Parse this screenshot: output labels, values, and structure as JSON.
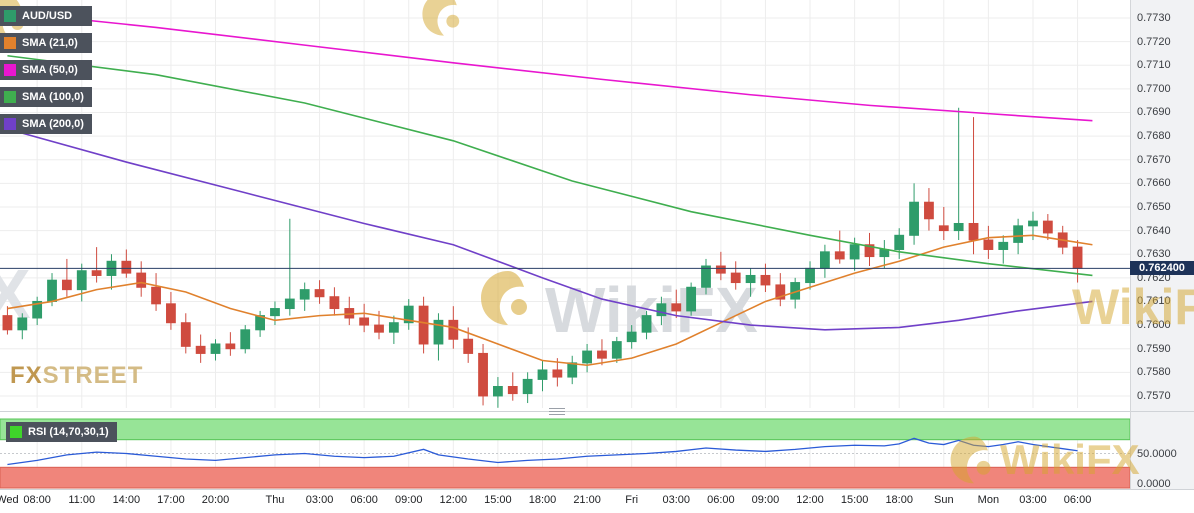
{
  "legend": {
    "symbol": {
      "label": "AUD/USD",
      "color": "#2f9c6a"
    },
    "items": [
      {
        "label": "SMA (21,0)",
        "color": "#e0812d"
      },
      {
        "label": "SMA (50,0)",
        "color": "#e816cf"
      },
      {
        "label": "SMA (100,0)",
        "color": "#3fae4f"
      },
      {
        "label": "SMA (200,0)",
        "color": "#7040c8"
      }
    ]
  },
  "price_axis": {
    "ticks": [
      "0.7730",
      "0.7720",
      "0.7710",
      "0.7700",
      "0.7690",
      "0.7680",
      "0.7670",
      "0.7660",
      "0.7650",
      "0.7640",
      "0.7630",
      "0.7620",
      "0.7610",
      "0.7600",
      "0.7590",
      "0.7580",
      "0.7570"
    ],
    "current_label": "0.762400",
    "current_bg": "#1d3258"
  },
  "rsi_panel": {
    "label": "RSI (14,70,30,1)",
    "square_color": "#3fd42a",
    "axis_ticks": [
      [
        50,
        "50.0000"
      ],
      [
        0,
        "0.0000"
      ]
    ]
  },
  "watermarks": {
    "center_text": "WikiFX",
    "left_text": "X",
    "right_text": "WikiFX",
    "bottom_right_text": "WikiFX",
    "fxstreet_fx": "FX",
    "fxstreet_street": "STREET"
  },
  "chart_data": {
    "type": "candlestick",
    "symbol": "AUD/USD",
    "current_price": 0.7624,
    "y_axis": {
      "min": 0.75649,
      "max": 0.77376,
      "ticks": [
        0.773,
        0.772,
        0.771,
        0.77,
        0.769,
        0.768,
        0.767,
        0.766,
        0.765,
        0.764,
        0.763,
        0.762,
        0.761,
        0.76,
        0.759,
        0.758,
        0.757
      ]
    },
    "x_labels": [
      [
        0,
        "Wed"
      ],
      [
        2,
        "08:00"
      ],
      [
        5,
        "11:00"
      ],
      [
        8,
        "14:00"
      ],
      [
        11,
        "17:00"
      ],
      [
        14,
        "20:00"
      ],
      [
        18,
        "Thu"
      ],
      [
        21,
        "03:00"
      ],
      [
        24,
        "06:00"
      ],
      [
        27,
        "09:00"
      ],
      [
        30,
        "12:00"
      ],
      [
        33,
        "15:00"
      ],
      [
        36,
        "18:00"
      ],
      [
        39,
        "21:00"
      ],
      [
        42,
        "Fri"
      ],
      [
        45,
        "03:00"
      ],
      [
        48,
        "06:00"
      ],
      [
        51,
        "09:00"
      ],
      [
        54,
        "12:00"
      ],
      [
        57,
        "15:00"
      ],
      [
        60,
        "18:00"
      ],
      [
        63,
        "Sun"
      ],
      [
        66,
        "Mon"
      ],
      [
        69,
        "03:00"
      ],
      [
        72,
        "06:00"
      ]
    ],
    "candles": [
      [
        0.7604,
        0.7608,
        0.7596,
        0.7598
      ],
      [
        0.7598,
        0.7605,
        0.7594,
        0.7603
      ],
      [
        0.7603,
        0.7612,
        0.76,
        0.761
      ],
      [
        0.761,
        0.7622,
        0.7608,
        0.7619
      ],
      [
        0.7619,
        0.7628,
        0.7612,
        0.7615
      ],
      [
        0.7615,
        0.7626,
        0.761,
        0.7623
      ],
      [
        0.7623,
        0.7633,
        0.7618,
        0.7621
      ],
      [
        0.7621,
        0.763,
        0.7615,
        0.7627
      ],
      [
        0.7627,
        0.7632,
        0.762,
        0.7622
      ],
      [
        0.7622,
        0.7627,
        0.7612,
        0.7616
      ],
      [
        0.7616,
        0.7622,
        0.7606,
        0.7609
      ],
      [
        0.7609,
        0.7614,
        0.7598,
        0.7601
      ],
      [
        0.7601,
        0.7605,
        0.7588,
        0.7591
      ],
      [
        0.7591,
        0.7596,
        0.7584,
        0.7588
      ],
      [
        0.7588,
        0.7594,
        0.7585,
        0.7592
      ],
      [
        0.7592,
        0.7597,
        0.7587,
        0.759
      ],
      [
        0.759,
        0.76,
        0.7588,
        0.7598
      ],
      [
        0.7598,
        0.7606,
        0.7595,
        0.7604
      ],
      [
        0.7604,
        0.761,
        0.76,
        0.7607
      ],
      [
        0.7607,
        0.7645,
        0.7604,
        0.7611
      ],
      [
        0.7611,
        0.7618,
        0.7606,
        0.7615
      ],
      [
        0.7615,
        0.7619,
        0.7609,
        0.7612
      ],
      [
        0.7612,
        0.7616,
        0.7604,
        0.7607
      ],
      [
        0.7607,
        0.7612,
        0.76,
        0.7603
      ],
      [
        0.7603,
        0.7609,
        0.7597,
        0.76
      ],
      [
        0.76,
        0.7606,
        0.7594,
        0.7597
      ],
      [
        0.7597,
        0.7604,
        0.7592,
        0.7601
      ],
      [
        0.7601,
        0.7611,
        0.7598,
        0.7608
      ],
      [
        0.7608,
        0.7612,
        0.7588,
        0.7592
      ],
      [
        0.7592,
        0.7605,
        0.7585,
        0.7602
      ],
      [
        0.7602,
        0.7608,
        0.759,
        0.7594
      ],
      [
        0.7594,
        0.7599,
        0.7584,
        0.7588
      ],
      [
        0.7588,
        0.7592,
        0.7566,
        0.757
      ],
      [
        0.757,
        0.7578,
        0.7565,
        0.7574
      ],
      [
        0.7574,
        0.758,
        0.7568,
        0.7571
      ],
      [
        0.7571,
        0.758,
        0.7567,
        0.7577
      ],
      [
        0.7577,
        0.7585,
        0.7572,
        0.7581
      ],
      [
        0.7581,
        0.7586,
        0.7574,
        0.7578
      ],
      [
        0.7578,
        0.7587,
        0.7575,
        0.7584
      ],
      [
        0.7584,
        0.7592,
        0.758,
        0.7589
      ],
      [
        0.7589,
        0.7594,
        0.7583,
        0.7586
      ],
      [
        0.7586,
        0.7595,
        0.7584,
        0.7593
      ],
      [
        0.7593,
        0.76,
        0.759,
        0.7597
      ],
      [
        0.7597,
        0.7606,
        0.7594,
        0.7604
      ],
      [
        0.7604,
        0.7612,
        0.76,
        0.7609
      ],
      [
        0.7609,
        0.7615,
        0.7603,
        0.7606
      ],
      [
        0.7606,
        0.7618,
        0.7604,
        0.7616
      ],
      [
        0.7616,
        0.7628,
        0.7613,
        0.7625
      ],
      [
        0.7625,
        0.7631,
        0.7619,
        0.7622
      ],
      [
        0.7622,
        0.7627,
        0.7615,
        0.7618
      ],
      [
        0.7618,
        0.7624,
        0.7612,
        0.7621
      ],
      [
        0.7621,
        0.7626,
        0.7614,
        0.7617
      ],
      [
        0.7617,
        0.7622,
        0.7608,
        0.7611
      ],
      [
        0.7611,
        0.762,
        0.7607,
        0.7618
      ],
      [
        0.7618,
        0.7627,
        0.7615,
        0.7624
      ],
      [
        0.7624,
        0.7634,
        0.762,
        0.7631
      ],
      [
        0.7631,
        0.764,
        0.7626,
        0.7628
      ],
      [
        0.7628,
        0.7637,
        0.7623,
        0.7634
      ],
      [
        0.7634,
        0.7639,
        0.7625,
        0.7629
      ],
      [
        0.7629,
        0.7636,
        0.7624,
        0.7632
      ],
      [
        0.7632,
        0.7641,
        0.7628,
        0.7638
      ],
      [
        0.7638,
        0.766,
        0.7634,
        0.7652
      ],
      [
        0.7652,
        0.7658,
        0.764,
        0.7645
      ],
      [
        0.7642,
        0.765,
        0.7636,
        0.764
      ],
      [
        0.764,
        0.7692,
        0.7636,
        0.7643
      ],
      [
        0.7643,
        0.7688,
        0.763,
        0.7636
      ],
      [
        0.7636,
        0.7642,
        0.7628,
        0.7632
      ],
      [
        0.7632,
        0.7638,
        0.7626,
        0.7635
      ],
      [
        0.7635,
        0.7645,
        0.763,
        0.7642
      ],
      [
        0.7642,
        0.7648,
        0.7636,
        0.7644
      ],
      [
        0.7644,
        0.7647,
        0.7636,
        0.7639
      ],
      [
        0.7639,
        0.7642,
        0.763,
        0.7633
      ],
      [
        0.7633,
        0.7636,
        0.7618,
        0.7624
      ]
    ],
    "overlays": [
      {
        "name": "SMA (21,0)",
        "color": "#e0812d",
        "points": [
          [
            0,
            0.7607
          ],
          [
            3,
            0.761
          ],
          [
            6,
            0.7615
          ],
          [
            9,
            0.7618
          ],
          [
            12,
            0.7614
          ],
          [
            15,
            0.7607
          ],
          [
            18,
            0.7602
          ],
          [
            21,
            0.7604
          ],
          [
            24,
            0.7605
          ],
          [
            27,
            0.7602
          ],
          [
            30,
            0.7599
          ],
          [
            33,
            0.7592
          ],
          [
            36,
            0.7585
          ],
          [
            39,
            0.7583
          ],
          [
            42,
            0.7586
          ],
          [
            45,
            0.7592
          ],
          [
            48,
            0.7601
          ],
          [
            51,
            0.761
          ],
          [
            54,
            0.7616
          ],
          [
            57,
            0.7622
          ],
          [
            60,
            0.7627
          ],
          [
            63,
            0.7633
          ],
          [
            66,
            0.7637
          ],
          [
            69,
            0.7638
          ],
          [
            71,
            0.7636
          ],
          [
            73,
            0.7634
          ]
        ]
      },
      {
        "name": "SMA (50,0)",
        "color": "#e816cf",
        "points": [
          [
            0,
            0.77325
          ],
          [
            10,
            0.7726
          ],
          [
            20,
            0.77185
          ],
          [
            30,
            0.7711
          ],
          [
            40,
            0.7704
          ],
          [
            50,
            0.76975
          ],
          [
            58,
            0.7693
          ],
          [
            66,
            0.76895
          ],
          [
            73,
            0.76865
          ]
        ]
      },
      {
        "name": "SMA (100,0)",
        "color": "#3fae4f",
        "points": [
          [
            0,
            0.7714
          ],
          [
            10,
            0.7706
          ],
          [
            20,
            0.7694
          ],
          [
            30,
            0.7678
          ],
          [
            38,
            0.7661
          ],
          [
            46,
            0.7648
          ],
          [
            54,
            0.7638
          ],
          [
            60,
            0.7631
          ],
          [
            66,
            0.7626
          ],
          [
            73,
            0.7621
          ]
        ]
      },
      {
        "name": "SMA (200,0)",
        "color": "#7040c8",
        "points": [
          [
            0,
            0.7683
          ],
          [
            8,
            0.7669
          ],
          [
            16,
            0.7656
          ],
          [
            24,
            0.7643
          ],
          [
            30,
            0.7634
          ],
          [
            36,
            0.762
          ],
          [
            40,
            0.7611
          ],
          [
            45,
            0.7604
          ],
          [
            50,
            0.76
          ],
          [
            55,
            0.7598
          ],
          [
            60,
            0.7599
          ],
          [
            64,
            0.7602
          ],
          [
            68,
            0.7606
          ],
          [
            73,
            0.761
          ]
        ]
      }
    ],
    "rsi": {
      "name": "RSI (14,70,30,1)",
      "period": 14,
      "upper": 70,
      "lower": 30,
      "scale": [
        0,
        100
      ],
      "values": [
        [
          0,
          34
        ],
        [
          2,
          40
        ],
        [
          4,
          48
        ],
        [
          6,
          52
        ],
        [
          8,
          50
        ],
        [
          10,
          46
        ],
        [
          12,
          42
        ],
        [
          14,
          40
        ],
        [
          16,
          44
        ],
        [
          18,
          48
        ],
        [
          20,
          50
        ],
        [
          22,
          46
        ],
        [
          24,
          44
        ],
        [
          26,
          46
        ],
        [
          28,
          56
        ],
        [
          29,
          48
        ],
        [
          31,
          42
        ],
        [
          33,
          37
        ],
        [
          35,
          40
        ],
        [
          37,
          42
        ],
        [
          39,
          46
        ],
        [
          41,
          48
        ],
        [
          43,
          50
        ],
        [
          45,
          53
        ],
        [
          47,
          58
        ],
        [
          49,
          55
        ],
        [
          51,
          53
        ],
        [
          53,
          56
        ],
        [
          55,
          60
        ],
        [
          57,
          62
        ],
        [
          59,
          61
        ],
        [
          60,
          64
        ],
        [
          61,
          72
        ],
        [
          62,
          65
        ],
        [
          63,
          63
        ],
        [
          64,
          69
        ],
        [
          65,
          62
        ],
        [
          66,
          60
        ],
        [
          67,
          63
        ],
        [
          68,
          67
        ],
        [
          69,
          63
        ],
        [
          70,
          60
        ],
        [
          71,
          57
        ],
        [
          72,
          54
        ]
      ]
    },
    "colors": {
      "up": "#2f9c6a",
      "down": "#cf4b3f",
      "price_line": "#2a3f66",
      "grid": "#ededed",
      "rsi_line": "#2b5bd7",
      "rsi_overbought_fill": "#97e497",
      "rsi_overbought_edge": "#55c455",
      "rsi_oversold_fill": "#f0857b",
      "rsi_oversold_edge": "#da5f52"
    }
  }
}
